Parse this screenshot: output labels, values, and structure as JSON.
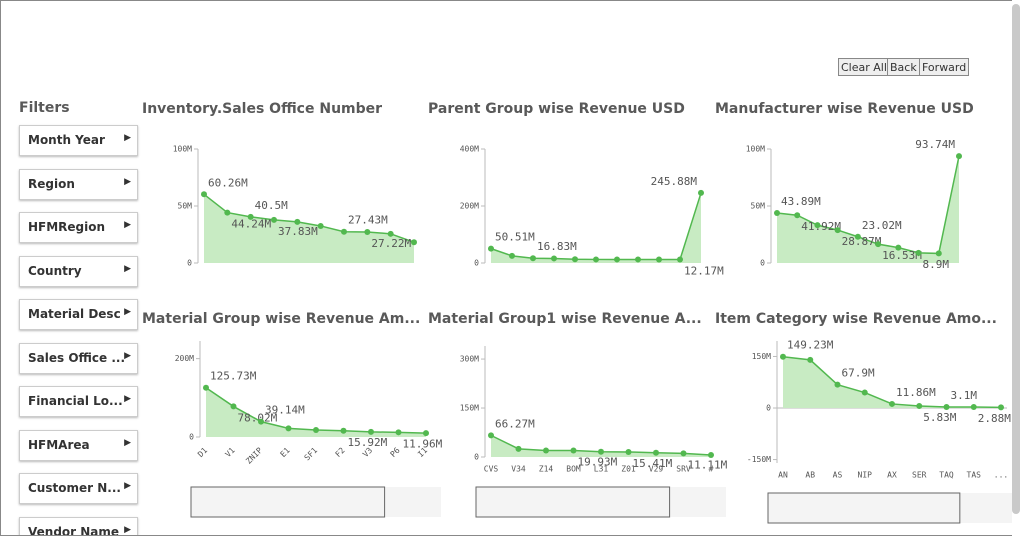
{
  "buttons": [
    "Clear All",
    "Back",
    "Forward"
  ],
  "filters_title": "Filters",
  "filters": [
    "Month Year",
    "Region",
    "HFMRegion",
    "Country",
    "Material Desc",
    "Sales Office ...",
    "Financial Lo...",
    "HFMArea",
    "Customer N...",
    "Vendor Name"
  ],
  "chart_data": [
    {
      "type": "area",
      "title": "Inventory.Sales Office Number",
      "categories": [
        null,
        null,
        null,
        null,
        null,
        null,
        null,
        null,
        null,
        null
      ],
      "values": [
        60.26,
        44.24,
        40.5,
        37.83,
        36.1,
        32.5,
        27.43,
        27.22,
        25.6,
        18.2
      ],
      "value_labels": [
        "60.26M",
        "44.24M",
        "40.5M",
        "37.83M",
        null,
        null,
        "27.43M",
        "27.22M",
        null,
        null
      ],
      "ylim": [
        0,
        100
      ],
      "yticks": [
        {
          "value": 0,
          "label": "0"
        },
        {
          "value": 50,
          "label": "50M"
        },
        {
          "value": 100,
          "label": "100M"
        }
      ],
      "color": "#52b84f"
    },
    {
      "type": "area",
      "title": "Parent Group wise Revenue USD",
      "categories": [
        null,
        null,
        null,
        null,
        null,
        null,
        null,
        null,
        null,
        null,
        null
      ],
      "values": [
        50.51,
        25,
        16.83,
        16,
        13,
        12.5,
        12.5,
        12.5,
        12.3,
        12.17,
        245.88
      ],
      "value_labels": [
        "50.51M",
        null,
        "16.83M",
        null,
        null,
        null,
        null,
        null,
        null,
        "12.17M",
        "245.88M"
      ],
      "ylim": [
        0,
        400
      ],
      "yticks": [
        {
          "value": 0,
          "label": "0"
        },
        {
          "value": 200,
          "label": "200M"
        },
        {
          "value": 400,
          "label": "400M"
        }
      ],
      "color": "#52b84f"
    },
    {
      "type": "area",
      "title": "Manufacturer wise Revenue USD",
      "categories": [
        null,
        null,
        null,
        null,
        null,
        null,
        null,
        null,
        null,
        null
      ],
      "values": [
        43.89,
        41.92,
        33.2,
        28.87,
        23.02,
        16.53,
        13.5,
        8.9,
        8.4,
        93.74
      ],
      "value_labels": [
        "43.89M",
        "41.92M",
        null,
        "28.87M",
        "23.02M",
        "16.53M",
        null,
        "8.9M",
        null,
        "93.74M"
      ],
      "ylim": [
        0,
        100
      ],
      "yticks": [
        {
          "value": 0,
          "label": "0"
        },
        {
          "value": 50,
          "label": "50M"
        },
        {
          "value": 100,
          "label": "100M"
        }
      ],
      "color": "#52b84f"
    },
    {
      "type": "area",
      "title": "Material Group wise Revenue Am...",
      "categories": [
        "D1",
        "V1",
        "ZNIP",
        "E1",
        "SF1",
        "F2",
        "V3",
        "P6",
        "I1"
      ],
      "values": [
        125.73,
        78.02,
        39.14,
        22,
        18,
        15.92,
        13,
        11.96,
        10
      ],
      "value_labels": [
        "125.73M",
        "78.02M",
        "39.14M",
        null,
        null,
        "15.92M",
        null,
        "11.96M",
        null
      ],
      "ylim": [
        0,
        245
      ],
      "yticks": [
        {
          "value": 0,
          "label": "0"
        },
        {
          "value": 200,
          "label": "200M"
        }
      ],
      "color": "#52b84f"
    },
    {
      "type": "area",
      "title": "Material Group1 wise Revenue A...",
      "categories": [
        "CVS",
        "V34",
        "Z14",
        "BOM",
        "L31",
        "Z01",
        "V29",
        "SRV",
        "#"
      ],
      "values": [
        66.27,
        25,
        20,
        19.93,
        16,
        15.41,
        13,
        11.11,
        6
      ],
      "value_labels": [
        "66.27M",
        null,
        null,
        "19.93M",
        null,
        "15.41M",
        null,
        "11.11M",
        null
      ],
      "ylim": [
        0,
        340
      ],
      "yticks": [
        {
          "value": 0,
          "label": "0"
        },
        {
          "value": 150,
          "label": "150M"
        },
        {
          "value": 300,
          "label": "300M"
        }
      ],
      "color": "#52b84f"
    },
    {
      "type": "area",
      "title": "Item Category wise Revenue Amo...",
      "categories": [
        "AN",
        "AB",
        "AS",
        "NIP",
        "AX",
        "SER",
        "TAQ",
        "TAS",
        "..."
      ],
      "values": [
        149.23,
        140,
        67.9,
        45,
        11.86,
        5.83,
        3.1,
        2.88,
        2
      ],
      "value_labels": [
        "149.23M",
        null,
        "67.9M",
        null,
        "11.86M",
        "5.83M",
        "3.1M",
        "2.88M",
        null
      ],
      "ylim": [
        -160,
        195
      ],
      "yticks": [
        {
          "value": -150,
          "label": "-150M"
        },
        {
          "value": 0,
          "label": "0"
        },
        {
          "value": 150,
          "label": "150M"
        }
      ],
      "color": "#52b84f"
    }
  ]
}
